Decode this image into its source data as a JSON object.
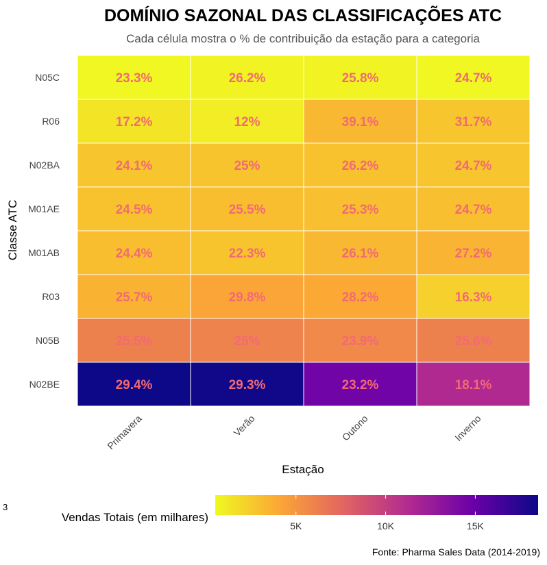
{
  "chart_data": {
    "type": "heatmap",
    "title": "DOMÍNIO SAZONAL DAS CLASSIFICAÇÕES ATC",
    "subtitle": "Cada célula mostra o % de contribuição da estação para a categoria",
    "xlabel": "Estação",
    "ylabel": "Classe ATC",
    "x_categories": [
      "Primavera",
      "Verão",
      "Outono",
      "Inverno"
    ],
    "y_categories": [
      "N05C",
      "R06",
      "N02BA",
      "M01AE",
      "M01AB",
      "R03",
      "N05B",
      "N02BE"
    ],
    "percent_labels": [
      [
        "23.3%",
        "26.2%",
        "25.8%",
        "24.7%"
      ],
      [
        "17.2%",
        "12%",
        "39.1%",
        "31.7%"
      ],
      [
        "24.1%",
        "25%",
        "26.2%",
        "24.7%"
      ],
      [
        "24.5%",
        "25.5%",
        "25.3%",
        "24.7%"
      ],
      [
        "24.4%",
        "22.3%",
        "26.1%",
        "27.2%"
      ],
      [
        "25.7%",
        "29.8%",
        "28.2%",
        "16.3%"
      ],
      [
        "25.5%",
        "25%",
        "23.9%",
        "25.6%"
      ],
      [
        "29.4%",
        "29.3%",
        "23.2%",
        "18.1%"
      ]
    ],
    "sales_thousands": [
      [
        0.6,
        0.7,
        0.7,
        0.6
      ],
      [
        1.4,
        1.0,
        3.3,
        2.7
      ],
      [
        2.7,
        2.8,
        2.9,
        2.7
      ],
      [
        2.9,
        3.1,
        3.0,
        3.0
      ],
      [
        3.1,
        2.8,
        3.3,
        3.5
      ],
      [
        3.6,
        4.2,
        4.0,
        2.3
      ],
      [
        6.1,
        6.0,
        5.7,
        6.1
      ],
      [
        18.5,
        18.4,
        14.6,
        11.4
      ]
    ],
    "color_scale": {
      "title": "Vendas Totais (em milhares)",
      "range": [
        0.5,
        18.5
      ],
      "ticks": [
        5,
        10,
        15
      ],
      "tick_labels": [
        "5K",
        "10K",
        "15K"
      ],
      "palette": "plasma-reversed",
      "colors": [
        "#f0f921",
        "#fca636",
        "#e16462",
        "#b12a90",
        "#6a00a8",
        "#0d0887"
      ]
    },
    "legend_placement": "bottom",
    "grid": false
  },
  "caption": "Fonte: Pharma Sales Data (2014-2019)",
  "stray_label": "3"
}
